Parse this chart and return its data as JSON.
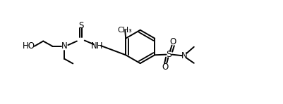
{
  "bg_color": "#ffffff",
  "line_color": "#000000",
  "lw": 1.4,
  "fs": 8.5,
  "xlim": [
    0,
    10.5
  ],
  "ylim": [
    0,
    4.5
  ]
}
